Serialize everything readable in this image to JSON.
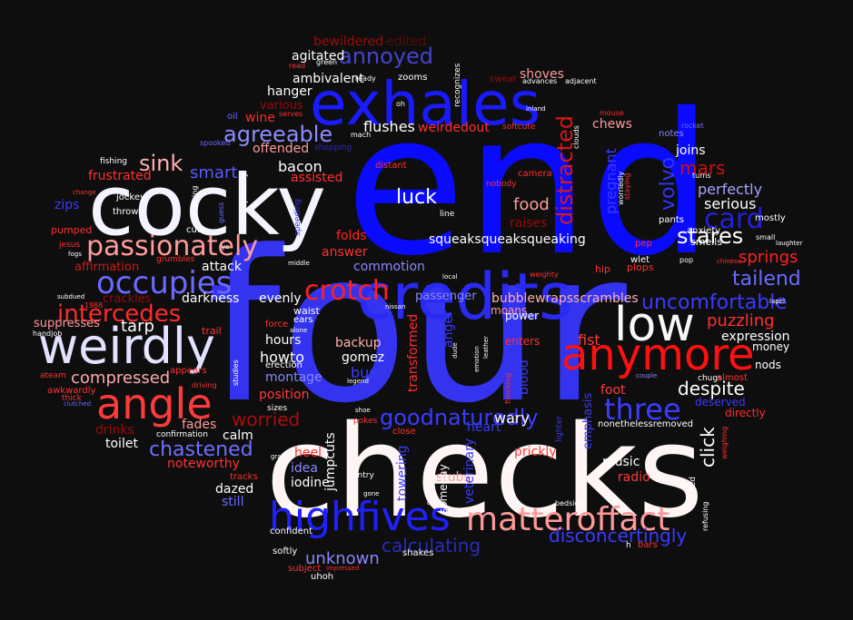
{
  "palette": {
    "background": "#0e0e0e",
    "blue": "#0a0aff",
    "mid_blue": "#4444ff",
    "light_blue": "#7777ff",
    "white": "#f6f0f0",
    "pale": "#e8e0ff",
    "red": "#ff2020",
    "dark_red": "#b00000",
    "pink": "#ff9a9a",
    "navy": "#2222aa"
  },
  "words": [
    {
      "text": "four",
      "color": "#3434f0"
    },
    {
      "text": "end",
      "color": "#0a0aff"
    },
    {
      "text": "checks",
      "color": "#fff5f5"
    },
    {
      "text": "cocky",
      "color": "#f4f4ff"
    },
    {
      "text": "exhales",
      "color": "#1a1aff"
    },
    {
      "text": "credits",
      "color": "#2a2af6"
    },
    {
      "text": "weirdly",
      "color": "#e2e2ff"
    },
    {
      "text": "anymore",
      "color": "#ff1010"
    },
    {
      "text": "angle",
      "color": "#ff3a3a"
    },
    {
      "text": "low",
      "color": "#f8f8f8"
    },
    {
      "text": "highfives",
      "color": "#2020ff"
    },
    {
      "text": "matteroffact",
      "color": "#ff9a9a"
    },
    {
      "text": "passionately",
      "color": "#ff9b9b"
    },
    {
      "text": "occupies",
      "color": "#6a6aff"
    },
    {
      "text": "crotch",
      "color": "#ff2020"
    },
    {
      "text": "three",
      "color": "#3c3cff"
    },
    {
      "text": "card",
      "color": "#2222d6"
    },
    {
      "text": "distracted",
      "color": "#d81818"
    },
    {
      "text": "goodnaturedly",
      "color": "#3b3bff"
    },
    {
      "text": "agreeable",
      "color": "#8c8cff"
    },
    {
      "text": "annoyed",
      "color": "#4444cc"
    },
    {
      "text": "intercedes",
      "color": "#ff2a2a"
    },
    {
      "text": "chastened",
      "color": "#6e6eff"
    },
    {
      "text": "uncomfortable",
      "color": "#3a3aff"
    },
    {
      "text": "disconcertingly",
      "color": "#3a3aff"
    },
    {
      "text": "tailend",
      "color": "#6a6aff"
    },
    {
      "text": "puzzling",
      "color": "#ff3030"
    },
    {
      "text": "stares",
      "color": "#ffffff"
    },
    {
      "text": "springs",
      "color": "#ff2222"
    },
    {
      "text": "volvo",
      "color": "#3434ff"
    },
    {
      "text": "mars",
      "color": "#cc1010"
    },
    {
      "text": "sink",
      "color": "#ffb0b0"
    },
    {
      "text": "smart",
      "color": "#5a5aff"
    },
    {
      "text": "luck",
      "color": "#ffffff"
    },
    {
      "text": "food",
      "color": "#ff9a9a"
    },
    {
      "text": "worried",
      "color": "#aa0c0c"
    },
    {
      "text": "despite",
      "color": "#ffffff"
    },
    {
      "text": "tarp",
      "color": "#ffffff"
    },
    {
      "text": "compressed",
      "color": "#ffa8a8"
    },
    {
      "text": "fist",
      "color": "#ff3a3a"
    },
    {
      "text": "click",
      "color": "#ffffff"
    },
    {
      "text": "unknown",
      "color": "#8888ff"
    },
    {
      "text": "calculating",
      "color": "#2a2abb"
    },
    {
      "text": "pregnant",
      "color": "#3a3aff"
    },
    {
      "text": "perfectly",
      "color": "#a4a4ff"
    },
    {
      "text": "serious",
      "color": "#ffffff"
    },
    {
      "text": "wary",
      "color": "#ffffff"
    },
    {
      "text": "bubblewrapsscrambles",
      "color": "#ffb0b0"
    },
    {
      "text": "squeaksqueaksqueaking",
      "color": "#ffffff"
    },
    {
      "text": "chews",
      "color": "#ff9a9a"
    },
    {
      "text": "flushes",
      "color": "#ffffff"
    },
    {
      "text": "weirdedout",
      "color": "#ff3030"
    },
    {
      "text": "bacon",
      "color": "#ffffff"
    },
    {
      "text": "assisted",
      "color": "#ff3030"
    },
    {
      "text": "frustrated",
      "color": "#ff3030"
    },
    {
      "text": "offended",
      "color": "#ff9a9a"
    },
    {
      "text": "wine",
      "color": "#ff2a2a"
    },
    {
      "text": "hanger",
      "color": "#ffffff"
    },
    {
      "text": "ambivalent",
      "color": "#ffffff"
    },
    {
      "text": "agitated",
      "color": "#ffffff"
    },
    {
      "text": "bewildered",
      "color": "#a00a0a"
    },
    {
      "text": "edited",
      "color": "#5a0a0a"
    },
    {
      "text": "shoves",
      "color": "#ff9a9a"
    },
    {
      "text": "joins",
      "color": "#ffffff"
    },
    {
      "text": "answer",
      "color": "#ff3030"
    },
    {
      "text": "folds",
      "color": "#ff2424"
    },
    {
      "text": "attack",
      "color": "#ffffff"
    },
    {
      "text": "commotion",
      "color": "#8888ff"
    },
    {
      "text": "darkness",
      "color": "#ffffff"
    },
    {
      "text": "evenly",
      "color": "#ffffff"
    },
    {
      "text": "passenger",
      "color": "#8888ff"
    },
    {
      "text": "crackles",
      "color": "#9a0a0a"
    },
    {
      "text": "affirmation",
      "color": "#cc1a1a"
    },
    {
      "text": "suppresses",
      "color": "#ff9a9a"
    },
    {
      "text": "hours",
      "color": "#ffffff"
    },
    {
      "text": "howto",
      "color": "#ffffff"
    },
    {
      "text": "montage",
      "color": "#8888ff"
    },
    {
      "text": "position",
      "color": "#ff3a3a"
    },
    {
      "text": "backup",
      "color": "#ffb0b0"
    },
    {
      "text": "gomez",
      "color": "#ffffff"
    },
    {
      "text": "bus",
      "color": "#3a3aff"
    },
    {
      "text": "transformed",
      "color": "#ff3030"
    },
    {
      "text": "heel",
      "color": "#ff3030"
    },
    {
      "text": "idea",
      "color": "#8888ff"
    },
    {
      "text": "iodine",
      "color": "#ffffff"
    },
    {
      "text": "jumpcuts",
      "color": "#ffffff"
    },
    {
      "text": "fades",
      "color": "#ff9a9a"
    },
    {
      "text": "calm",
      "color": "#ffffff"
    },
    {
      "text": "toilet",
      "color": "#ffffff"
    },
    {
      "text": "drinks",
      "color": "#9a0a0a"
    },
    {
      "text": "noteworthy",
      "color": "#ff3030"
    },
    {
      "text": "dazed",
      "color": "#ffffff"
    },
    {
      "text": "still",
      "color": "#6a6aff"
    },
    {
      "text": "stubs",
      "color": "#ff9a9a"
    },
    {
      "text": "prickly",
      "color": "#ff3a3a"
    },
    {
      "text": "music",
      "color": "#ffffff"
    },
    {
      "text": "radio",
      "color": "#ff3a3a"
    },
    {
      "text": "foot",
      "color": "#ff3a3a"
    },
    {
      "text": "expression",
      "color": "#ffffff"
    },
    {
      "text": "money",
      "color": "#ffffff"
    },
    {
      "text": "nods",
      "color": "#ffffff"
    },
    {
      "text": "deserved",
      "color": "#3a3aff"
    },
    {
      "text": "heart",
      "color": "#3a3aff"
    },
    {
      "text": "blood",
      "color": "#3a3aff"
    },
    {
      "text": "veterinary",
      "color": "#3a3aff"
    },
    {
      "text": "towering",
      "color": "#3a3aff"
    },
    {
      "text": "emphasis",
      "color": "#3a3aff"
    },
    {
      "text": "raises",
      "color": "#9a0a0a"
    },
    {
      "text": "moans",
      "color": "#ff9a9a"
    },
    {
      "text": "enters",
      "color": "#ff3030"
    },
    {
      "text": "power",
      "color": "#ffffff"
    },
    {
      "text": "anger",
      "color": "#3a3aff"
    },
    {
      "text": "someday",
      "color": "#ffffff"
    },
    {
      "text": "shakes",
      "color": "#ffffff"
    },
    {
      "text": "softly",
      "color": "#ffffff"
    },
    {
      "text": "subject",
      "color": "#ff3030"
    },
    {
      "text": "uhoh",
      "color": "#ffffff"
    },
    {
      "text": "confident",
      "color": "#ffffff"
    },
    {
      "text": "nonethelessremoved",
      "color": "#ffffff"
    },
    {
      "text": "directly",
      "color": "#ff3030"
    },
    {
      "text": "zips",
      "color": "#3a3aff"
    },
    {
      "text": "throws",
      "color": "#ffffff"
    },
    {
      "text": "jockey",
      "color": "#ffffff"
    },
    {
      "text": "pumped",
      "color": "#ff3030"
    },
    {
      "text": "smells",
      "color": "#ffffff"
    },
    {
      "text": "anxiety",
      "color": "#ffffff"
    },
    {
      "text": "pants",
      "color": "#ffffff"
    },
    {
      "text": "mostly",
      "color": "#ffffff"
    },
    {
      "text": "plops",
      "color": "#ff3030"
    },
    {
      "text": "hip",
      "color": "#ff3030"
    },
    {
      "text": "pep",
      "color": "#ff3030"
    },
    {
      "text": "wlet",
      "color": "#ffffff"
    },
    {
      "text": "notes",
      "color": "#8888ff"
    },
    {
      "text": "distant",
      "color": "#ff3030"
    },
    {
      "text": "camera",
      "color": "#ff3030"
    },
    {
      "text": "sweat",
      "color": "#9a0a0a"
    },
    {
      "text": "advances",
      "color": "#ffffff"
    },
    {
      "text": "adjacent",
      "color": "#ffffff"
    },
    {
      "text": "zooms",
      "color": "#ffffff"
    },
    {
      "text": "ready",
      "color": "#ffffff"
    },
    {
      "text": "serves",
      "color": "#ff3030"
    },
    {
      "text": "various",
      "color": "#9a0a0a"
    },
    {
      "text": "oil",
      "color": "#6a6aff"
    },
    {
      "text": "fishing",
      "color": "#ffffff"
    },
    {
      "text": "cute",
      "color": "#ffffff"
    },
    {
      "text": "grumbles",
      "color": "#ff3030"
    },
    {
      "text": "ears",
      "color": "#ffffff"
    },
    {
      "text": "force",
      "color": "#ff3030"
    },
    {
      "text": "waist",
      "color": "#ffffff"
    },
    {
      "text": "erection",
      "color": "#ffffff"
    },
    {
      "text": "trail",
      "color": "#ff3030"
    },
    {
      "text": "appears",
      "color": "#ff3030"
    },
    {
      "text": "awkwardly",
      "color": "#ff3030"
    },
    {
      "text": "thick",
      "color": "#ff3030"
    },
    {
      "text": "ateam",
      "color": "#ff3030"
    },
    {
      "text": "handjob",
      "color": "#ffffff"
    },
    {
      "text": "confirmation",
      "color": "#ffffff"
    },
    {
      "text": "tracks",
      "color": "#ff3030"
    },
    {
      "text": "entry",
      "color": "#ffffff"
    },
    {
      "text": "close",
      "color": "#ff3030"
    },
    {
      "text": "pokes",
      "color": "#ff3030"
    },
    {
      "text": "bars",
      "color": "#ff3030"
    },
    {
      "text": "chugs",
      "color": "#ffffff"
    },
    {
      "text": "almost",
      "color": "#ff3030"
    },
    {
      "text": "couple",
      "color": "#8888ff"
    },
    {
      "text": "bed",
      "color": "#ffffff"
    },
    {
      "text": "refusing",
      "color": "#ffffff"
    },
    {
      "text": "bedside",
      "color": "#ffffff"
    },
    {
      "text": "recognizes",
      "color": "#ffffff"
    },
    {
      "text": "softcute",
      "color": "#ff3030"
    },
    {
      "text": "triumphantly",
      "color": "#ffffff"
    },
    {
      "text": "remaining",
      "color": "#ffffff"
    },
    {
      "text": "speeding",
      "color": "#3a3aff"
    },
    {
      "text": "worriedly",
      "color": "#ffffff"
    },
    {
      "text": "staying",
      "color": "#ff3030"
    },
    {
      "text": "mach",
      "color": "#ffffff"
    },
    {
      "text": "spooked",
      "color": "#6a6aff"
    },
    {
      "text": "shopping",
      "color": "#2a2abb"
    },
    {
      "text": "h",
      "color": "#ffffff"
    },
    {
      "text": "sizes",
      "color": "#ffffff"
    },
    {
      "text": "middle",
      "color": "#ffffff"
    },
    {
      "text": "alone",
      "color": "#ffffff"
    },
    {
      "text": "nissan",
      "color": "#ffffff"
    },
    {
      "text": "legend",
      "color": "#ffffff"
    },
    {
      "text": "1988",
      "color": "#ff3030"
    },
    {
      "text": "fogs",
      "color": "#ffffff"
    },
    {
      "text": "subdued",
      "color": "#ffffff"
    },
    {
      "text": "jesus",
      "color": "#ff3030"
    },
    {
      "text": "change",
      "color": "#ff3030"
    },
    {
      "text": "emotion",
      "color": "#ffffff"
    },
    {
      "text": "leather",
      "color": "#ffffff"
    },
    {
      "text": "local",
      "color": "#ffffff"
    },
    {
      "text": "line",
      "color": "#ffffff"
    },
    {
      "text": "grail",
      "color": "#ffffff"
    },
    {
      "text": "nobody",
      "color": "#ff3030"
    },
    {
      "text": "green",
      "color": "#ffffff"
    },
    {
      "text": "read",
      "color": "#ff3030"
    },
    {
      "text": "oh",
      "color": "#ffffff"
    },
    {
      "text": "clouds",
      "color": "#ffffff"
    },
    {
      "text": "mouse",
      "color": "#ff3030"
    },
    {
      "text": "inland",
      "color": "#ffffff"
    },
    {
      "text": "turns",
      "color": "#ffffff"
    },
    {
      "text": "rocket",
      "color": "#6a6aff"
    },
    {
      "text": "small",
      "color": "#ffffff"
    },
    {
      "text": "laughter",
      "color": "#ffffff"
    },
    {
      "text": "lapel",
      "color": "#ffffff"
    },
    {
      "text": "chinese",
      "color": "#ff3030"
    },
    {
      "text": "pop",
      "color": "#ffffff"
    },
    {
      "text": "gone",
      "color": "#ffffff"
    },
    {
      "text": "dollar",
      "color": "#ffffff"
    },
    {
      "text": "impressed",
      "color": "#ff3030"
    },
    {
      "text": "lighter",
      "color": "#3a3aff"
    },
    {
      "text": "weighing",
      "color": "#ff3030"
    },
    {
      "text": "shoe",
      "color": "#ffffff"
    },
    {
      "text": "iron",
      "color": "#ffffff"
    },
    {
      "text": "clutched",
      "color": "#6a6aff"
    },
    {
      "text": "studies",
      "color": "#ffffff"
    },
    {
      "text": "driving",
      "color": "#ff3030"
    },
    {
      "text": "weighty",
      "color": "#ff3030"
    },
    {
      "text": "flinching",
      "color": "#ff3030"
    },
    {
      "text": "dude",
      "color": "#ffffff"
    },
    {
      "text": "guess",
      "color": "#6a6aff"
    },
    {
      "text": "ye",
      "color": "#ffffff"
    }
  ]
}
